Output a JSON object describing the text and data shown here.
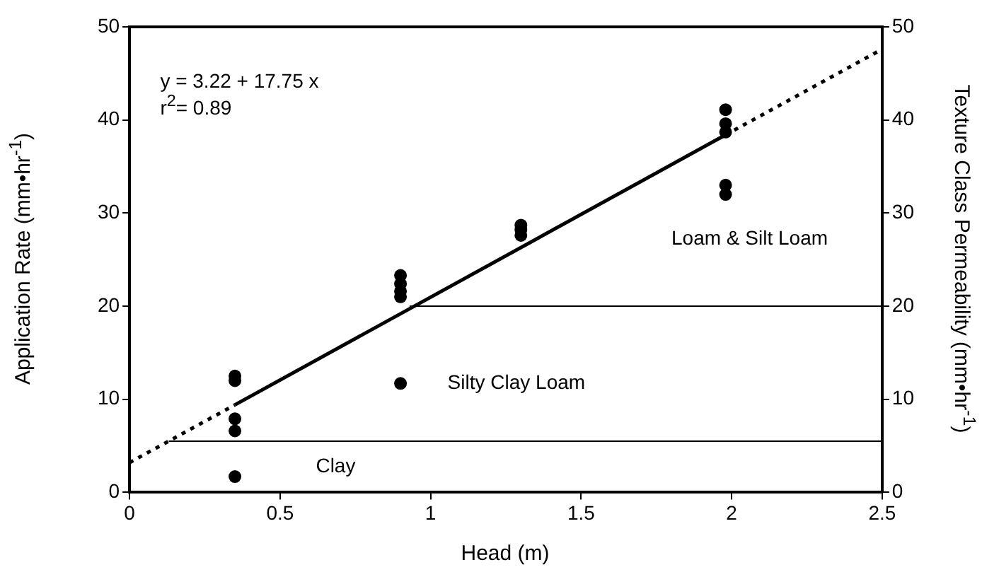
{
  "chart_data": {
    "type": "scatter",
    "xlabel": "Head (m)",
    "ylabel": "Application Rate (mm•hr$^{-1}$)",
    "y2label": "Texture Class Permeability (mm•hr$^{-1}$)",
    "xlim": [
      0,
      2.5
    ],
    "xticks": [
      0,
      0.5,
      1,
      1.5,
      2,
      2.5
    ],
    "ylim": [
      0,
      50
    ],
    "yticks": [
      0,
      10,
      20,
      30,
      40,
      50
    ],
    "y2lim": [
      0,
      50
    ],
    "y2ticks": [
      0,
      10,
      20,
      30,
      40,
      50
    ],
    "grid": false,
    "legend": false,
    "series": [
      {
        "color": "#000000",
        "marker": "circle",
        "x": [
          0.35,
          0.35,
          0.35,
          0.35,
          0.35,
          0.9,
          0.9,
          0.9,
          0.9,
          0.9,
          1.3,
          1.3,
          1.3,
          1.98,
          1.98,
          1.98,
          1.98,
          1.98
        ],
        "values": [
          12.5,
          12.0,
          7.9,
          6.6,
          1.7,
          11.7,
          23.3,
          22.4,
          21.6,
          21.0,
          28.7,
          28.2,
          27.6,
          41.1,
          39.6,
          38.7,
          33.0,
          32.0
        ]
      },
      {
        "type": "line",
        "color": "#000000",
        "marker": "none",
        "line_style": "solid",
        "x": [
          0.35,
          1.98
        ],
        "values": [
          9.4,
          38.4
        ]
      },
      {
        "type": "line",
        "color": "#000000",
        "marker": "none",
        "line_style": "dotted",
        "x": [
          0,
          0.35
        ],
        "values": [
          3.2,
          9.4
        ]
      },
      {
        "type": "line",
        "color": "#000000",
        "marker": "none",
        "line_style": "dotted",
        "x": [
          1.98,
          2.5
        ],
        "values": [
          38.4,
          47.6
        ]
      },
      {
        "type": "line",
        "color": "#000000",
        "marker": "none",
        "line_style": "solid",
        "axis": "y2",
        "x": [
          0.13,
          2.5
        ],
        "values": [
          5.5,
          5.5
        ]
      },
      {
        "type": "line",
        "color": "#000000",
        "marker": "none",
        "line_style": "solid",
        "axis": "y2",
        "x": [
          0.93,
          2.5
        ],
        "values": [
          20,
          20
        ]
      }
    ],
    "annotations": [
      "y = 3.22 + 17.75 x",
      "r$^{2}$= 0.89",
      "Clay",
      "Silty Clay Loam",
      "Loam & Silt Loam"
    ]
  }
}
